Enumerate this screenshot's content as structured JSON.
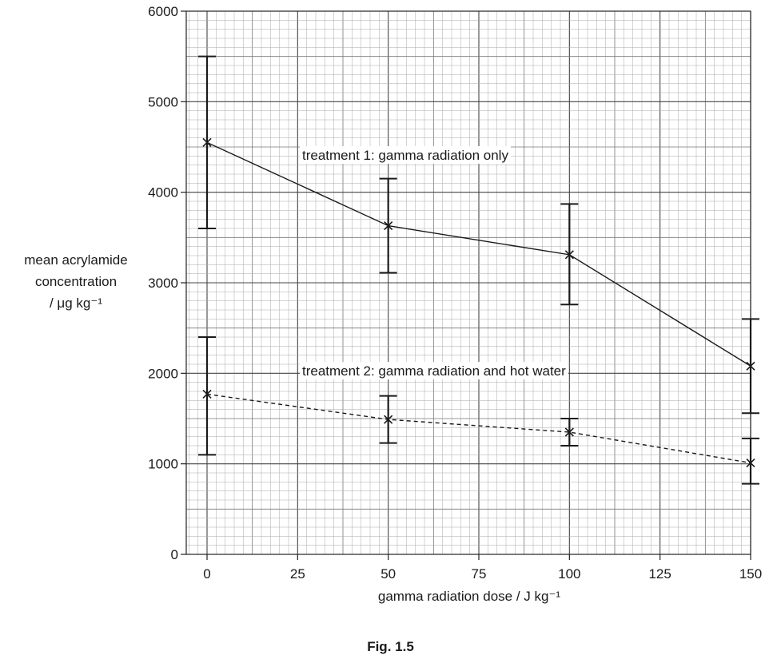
{
  "figure": {
    "caption": "Fig. 1.5"
  },
  "chart_data": {
    "type": "line",
    "xlabel": "gamma radiation dose / J kg⁻¹",
    "ylabel_lines": [
      "mean acrylamide",
      "concentration",
      "/ μg kg⁻¹"
    ],
    "xlim": [
      0,
      150
    ],
    "ylim": [
      0,
      6000
    ],
    "x_ticks": [
      0,
      25,
      50,
      75,
      100,
      125,
      150
    ],
    "y_ticks": [
      0,
      1000,
      2000,
      3000,
      4000,
      5000,
      6000
    ],
    "grid": true,
    "x": [
      0,
      50,
      100,
      150
    ],
    "series": [
      {
        "name": "treatment 1: gamma radiation only",
        "style": "solid",
        "values": [
          4550,
          3630,
          3310,
          2080
        ],
        "error_low": [
          3600,
          3110,
          2760,
          1560
        ],
        "error_high": [
          5500,
          4150,
          3870,
          2600
        ]
      },
      {
        "name": "treatment 2: gamma radiation and hot water",
        "style": "dashed",
        "values": [
          1770,
          1490,
          1350,
          1010
        ],
        "error_low": [
          1100,
          1230,
          1200,
          780
        ],
        "error_high": [
          2400,
          1750,
          1500,
          1280
        ]
      }
    ]
  }
}
